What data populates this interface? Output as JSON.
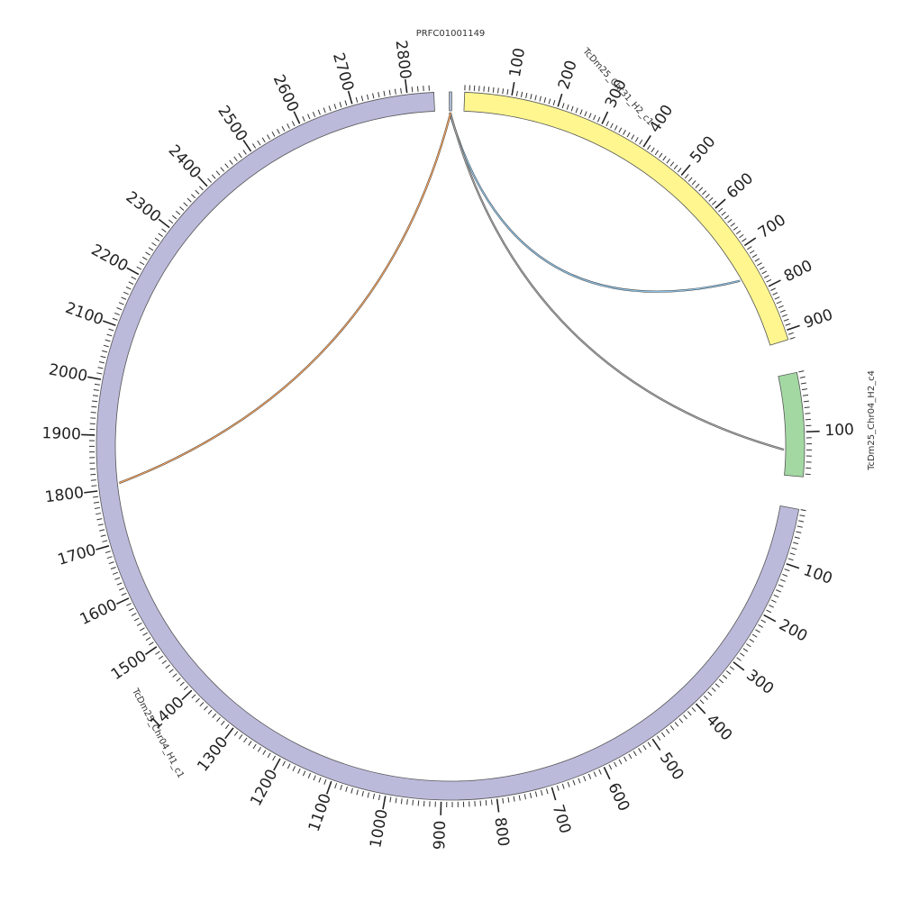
{
  "figure": {
    "type": "circos",
    "chromosomes": [
      {
        "id": "PRFC01001149",
        "label": "PRFC01001149",
        "length": 5,
        "color": "#b0c4de",
        "tick_labels": []
      },
      {
        "id": "TcDm25_Chr31_H2_c1",
        "label": "TcDm25_Chr31_H2_c1",
        "length": 920,
        "color": "#fff68f",
        "tick_labels": [
          "100",
          "200",
          "300",
          "400",
          "500",
          "600",
          "700",
          "800",
          "900"
        ]
      },
      {
        "id": "TcDm25_Chr04_H2_c4",
        "label": "TcDm25_Chr04_H2_c4",
        "length": 175,
        "color": "#a3d8a3",
        "tick_labels": [
          "100"
        ]
      },
      {
        "id": "TcDm25_Chr04_H1_c1",
        "label": "TcDm25_Chr04_H1_c1",
        "length": 2848,
        "color": "#bcbadb",
        "tick_labels": [
          "100",
          "200",
          "300",
          "400",
          "500",
          "600",
          "700",
          "800",
          "900",
          "1000",
          "1100",
          "1200",
          "1300",
          "1400",
          "1500",
          "1600",
          "1700",
          "1800",
          "1900",
          "2000",
          "2100",
          "2200",
          "2300",
          "2400",
          "2500",
          "2600",
          "2700",
          "2800"
        ]
      }
    ],
    "links": [
      {
        "from": "PRFC01001149",
        "from_pos": 1,
        "to": "TcDm25_Chr31_H2_c1",
        "to_pos": 760,
        "color": "#8fc1e3"
      },
      {
        "from": "PRFC01001149",
        "from_pos": 2,
        "to": "TcDm25_Chr04_H2_c4",
        "to_pos": 130,
        "color": "#a7a7a7"
      },
      {
        "from": "PRFC01001149",
        "from_pos": 3,
        "to": "TcDm25_Chr04_H1_c1",
        "to_pos": 1810,
        "color": "#f4a460"
      }
    ]
  }
}
